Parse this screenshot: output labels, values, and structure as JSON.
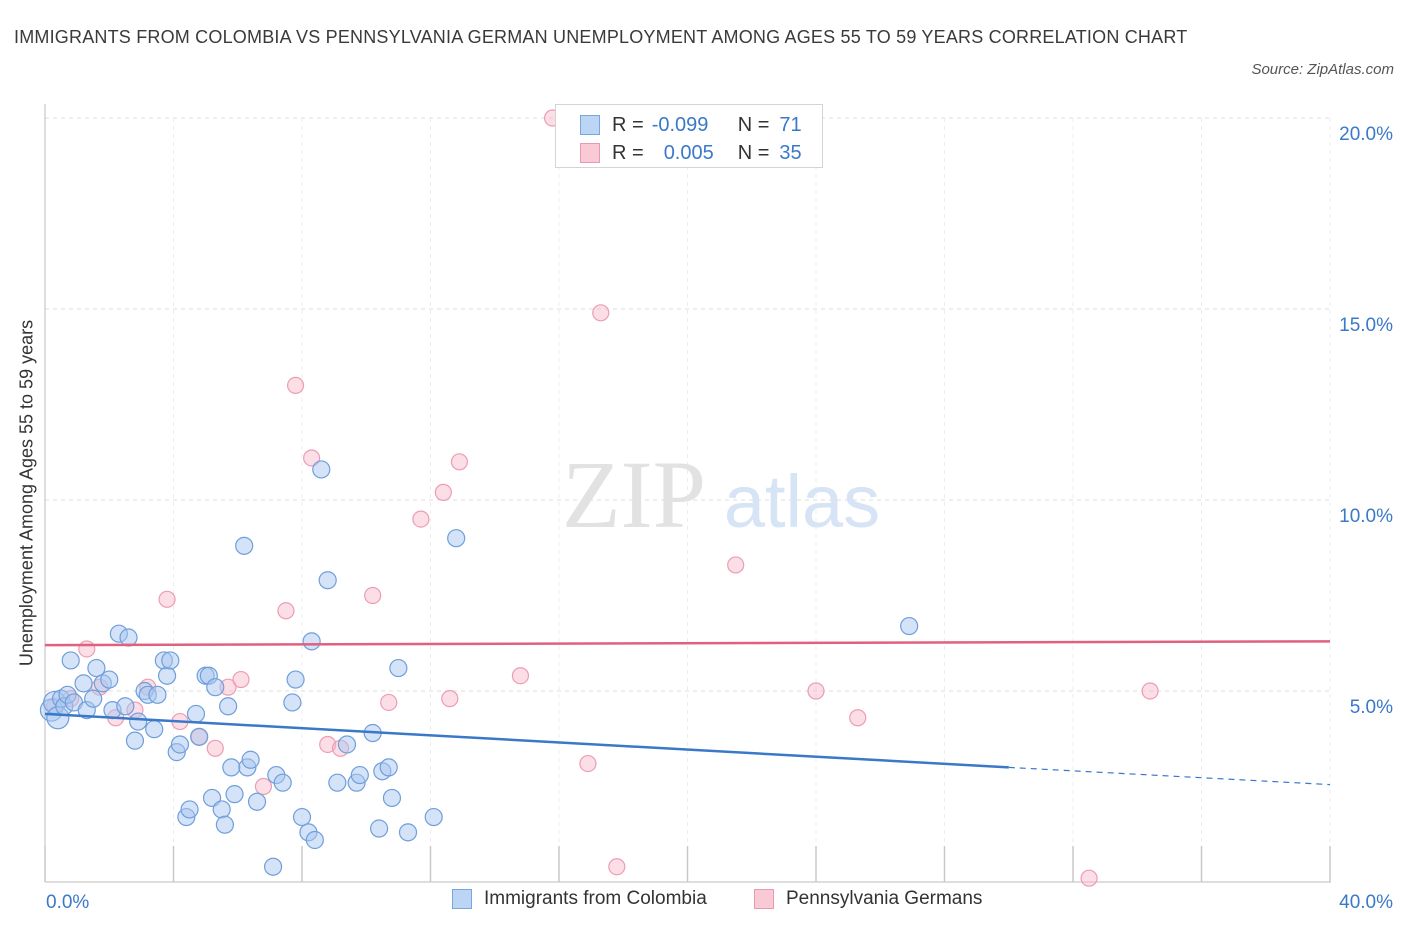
{
  "title": "IMMIGRANTS FROM COLOMBIA VS PENNSYLVANIA GERMAN UNEMPLOYMENT AMONG AGES 55 TO 59 YEARS CORRELATION CHART",
  "source": "Source: ZipAtlas.com",
  "watermark": {
    "zip": "ZIP",
    "atlas": "atlas"
  },
  "legend": {
    "row1": {
      "r_label": "R =",
      "r_value": "-0.099",
      "n_label": "N =",
      "n_value": "71"
    },
    "row2": {
      "r_label": "R =",
      "r_value": "0.005",
      "n_label": "N =",
      "n_value": "35"
    }
  },
  "colors": {
    "blue": "#3a78c8",
    "blue_fill": "#a9c8f0",
    "pink": "#e0607f",
    "pink_fill": "#f6b6c8",
    "grid": "#dcdcdc",
    "tick_text": "#3a78c8"
  },
  "chart_data": {
    "type": "scatter",
    "title": "IMMIGRANTS FROM COLOMBIA VS PENNSYLVANIA GERMAN UNEMPLOYMENT AMONG AGES 55 TO 59 YEARS CORRELATION CHART",
    "xlabel": "",
    "ylabel": "Unemployment Among Ages 55 to 59 years",
    "xlim": [
      0,
      40
    ],
    "ylim": [
      0,
      20
    ],
    "x_tick_labels": [
      "0.0%",
      "40.0%"
    ],
    "y_tick_labels": [
      "5.0%",
      "10.0%",
      "15.0%",
      "20.0%"
    ],
    "y_ticks": [
      5,
      10,
      15,
      20
    ],
    "grid": true,
    "legend_position": "top-center",
    "series": [
      {
        "name": "Immigrants from Colombia",
        "color": "#3a78c8",
        "r": -0.099,
        "n": 71,
        "trend": {
          "x0": 0,
          "y0": 4.4,
          "x1": 30,
          "y1": 3.0,
          "dash_to_x": 40,
          "dash_to_y": 2.55
        },
        "points": [
          [
            0.2,
            4.5
          ],
          [
            0.3,
            4.7
          ],
          [
            0.4,
            4.3
          ],
          [
            0.5,
            4.8
          ],
          [
            0.6,
            4.6
          ],
          [
            0.7,
            4.9
          ],
          [
            0.8,
            5.8
          ],
          [
            0.9,
            4.7
          ],
          [
            1.2,
            5.2
          ],
          [
            1.3,
            4.5
          ],
          [
            1.5,
            4.8
          ],
          [
            1.6,
            5.6
          ],
          [
            1.8,
            5.2
          ],
          [
            2.0,
            5.3
          ],
          [
            2.1,
            4.5
          ],
          [
            2.3,
            6.5
          ],
          [
            2.5,
            4.6
          ],
          [
            2.6,
            6.4
          ],
          [
            2.8,
            3.7
          ],
          [
            2.9,
            4.2
          ],
          [
            3.1,
            5.0
          ],
          [
            3.2,
            4.9
          ],
          [
            3.4,
            4.0
          ],
          [
            3.5,
            4.9
          ],
          [
            3.7,
            5.8
          ],
          [
            3.8,
            5.4
          ],
          [
            3.9,
            5.8
          ],
          [
            4.1,
            3.4
          ],
          [
            4.2,
            3.6
          ],
          [
            4.4,
            1.7
          ],
          [
            4.5,
            1.9
          ],
          [
            4.7,
            4.4
          ],
          [
            4.8,
            3.8
          ],
          [
            5.0,
            5.4
          ],
          [
            5.1,
            5.4
          ],
          [
            5.2,
            2.2
          ],
          [
            5.3,
            5.1
          ],
          [
            5.5,
            1.9
          ],
          [
            5.6,
            1.5
          ],
          [
            5.7,
            4.6
          ],
          [
            5.8,
            3.0
          ],
          [
            5.9,
            2.3
          ],
          [
            6.2,
            8.8
          ],
          [
            6.3,
            3.0
          ],
          [
            6.4,
            3.2
          ],
          [
            6.6,
            2.1
          ],
          [
            7.2,
            2.8
          ],
          [
            7.4,
            2.6
          ],
          [
            7.1,
            0.4
          ],
          [
            7.7,
            4.7
          ],
          [
            7.8,
            5.3
          ],
          [
            8.0,
            1.7
          ],
          [
            8.2,
            1.3
          ],
          [
            8.3,
            6.3
          ],
          [
            8.4,
            1.1
          ],
          [
            8.6,
            10.8
          ],
          [
            8.8,
            7.9
          ],
          [
            9.1,
            2.6
          ],
          [
            9.4,
            3.6
          ],
          [
            9.7,
            2.6
          ],
          [
            9.8,
            2.8
          ],
          [
            10.2,
            3.9
          ],
          [
            10.4,
            1.4
          ],
          [
            10.5,
            2.9
          ],
          [
            10.7,
            3.0
          ],
          [
            10.8,
            2.2
          ],
          [
            11.0,
            5.6
          ],
          [
            11.3,
            1.3
          ],
          [
            12.1,
            1.7
          ],
          [
            12.8,
            9.0
          ],
          [
            26.9,
            6.7
          ]
        ]
      },
      {
        "name": "Pennsylvania Germans",
        "color": "#e0607f",
        "r": 0.005,
        "n": 35,
        "trend": {
          "x0": 0,
          "y0": 6.2,
          "x1": 40,
          "y1": 6.3
        },
        "points": [
          [
            0.3,
            4.6
          ],
          [
            0.8,
            4.8
          ],
          [
            1.3,
            6.1
          ],
          [
            1.7,
            5.1
          ],
          [
            2.2,
            4.3
          ],
          [
            2.8,
            4.5
          ],
          [
            3.2,
            5.1
          ],
          [
            3.8,
            7.4
          ],
          [
            4.2,
            4.2
          ],
          [
            4.8,
            3.8
          ],
          [
            5.3,
            3.5
          ],
          [
            5.7,
            5.1
          ],
          [
            6.1,
            5.3
          ],
          [
            6.8,
            2.5
          ],
          [
            7.5,
            7.1
          ],
          [
            7.8,
            13.0
          ],
          [
            8.3,
            11.1
          ],
          [
            8.8,
            3.6
          ],
          [
            9.2,
            3.5
          ],
          [
            10.2,
            7.5
          ],
          [
            10.7,
            4.7
          ],
          [
            11.7,
            9.5
          ],
          [
            12.4,
            10.2
          ],
          [
            12.6,
            4.8
          ],
          [
            12.9,
            11.0
          ],
          [
            14.8,
            5.4
          ],
          [
            15.8,
            20.0
          ],
          [
            16.9,
            3.1
          ],
          [
            17.3,
            14.9
          ],
          [
            17.8,
            0.4
          ],
          [
            21.5,
            8.3
          ],
          [
            24.0,
            5.0
          ],
          [
            25.3,
            4.3
          ],
          [
            32.5,
            0.1
          ],
          [
            34.4,
            5.0
          ]
        ]
      }
    ]
  },
  "bottom_legend": {
    "item1": "Immigrants from Colombia",
    "item2": "Pennsylvania Germans"
  }
}
